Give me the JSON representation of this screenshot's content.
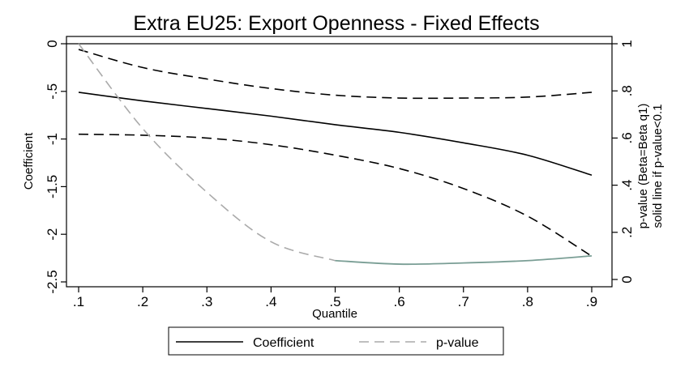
{
  "chart_data": {
    "type": "line",
    "title": "Extra EU25: Export Openness - Fixed Effects",
    "xlabel": "Quantile",
    "ylabel": "Coefficient",
    "y2label_line1": "p-value (Beta=Beta q1)",
    "y2label_line2": "solid line if p-value<0.1",
    "x": [
      0.1,
      0.2,
      0.3,
      0.4,
      0.5,
      0.6,
      0.7,
      0.8,
      0.9
    ],
    "x_tick_labels": [
      ".1",
      ".2",
      ".3",
      ".4",
      ".5",
      ".6",
      ".7",
      ".8",
      ".9"
    ],
    "xlim": [
      0.1,
      0.9
    ],
    "ylim": [
      -2.5,
      0
    ],
    "y_ticks": [
      0,
      -0.5,
      -1,
      -1.5,
      -2,
      -2.5
    ],
    "y_tick_labels": [
      "0",
      "-.5",
      "-1",
      "-1.5",
      "-2",
      "-2.5"
    ],
    "y2lim": [
      0,
      1
    ],
    "y2_ticks": [
      0,
      0.2,
      0.4,
      0.6,
      0.8,
      1
    ],
    "y2_tick_labels": [
      "0",
      ".2",
      ".4",
      ".6",
      ".8",
      "1"
    ],
    "series": [
      {
        "name": "Coefficient",
        "axis": "left",
        "style": "solid",
        "color": "#000000",
        "values": [
          -0.51,
          -0.6,
          -0.68,
          -0.76,
          -0.85,
          -0.93,
          -1.04,
          -1.17,
          -1.38
        ]
      },
      {
        "name": "",
        "axis": "left",
        "style": "dashed",
        "color": "#000000",
        "role": "upper-bound",
        "values": [
          -0.06,
          -0.25,
          -0.37,
          -0.47,
          -0.54,
          -0.57,
          -0.57,
          -0.56,
          -0.51
        ]
      },
      {
        "name": "",
        "axis": "left",
        "style": "dashed",
        "color": "#000000",
        "role": "lower-bound",
        "values": [
          -0.95,
          -0.96,
          -0.99,
          -1.06,
          -1.17,
          -1.31,
          -1.52,
          -1.81,
          -2.23
        ]
      },
      {
        "name": "p-value",
        "axis": "right",
        "style": "dashed",
        "color": "#aaaaaa",
        "solid_color": "#7a9e95",
        "values": [
          1.0,
          0.64,
          0.37,
          0.16,
          0.08,
          0.065,
          0.07,
          0.08,
          0.1
        ],
        "solid_from_index": 4
      }
    ],
    "legend": {
      "position": "bottom",
      "items": [
        "Coefficient",
        "p-value"
      ]
    }
  }
}
